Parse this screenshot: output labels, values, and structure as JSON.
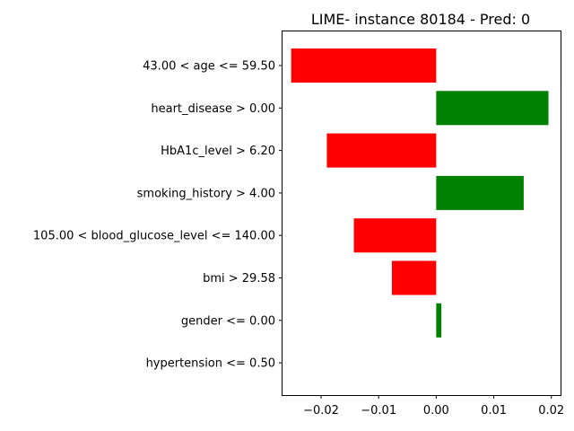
{
  "chart_data": {
    "type": "bar",
    "orientation": "horizontal",
    "title": "LIME- instance 80184 - Pred: 0",
    "xlabel": "",
    "ylabel": "",
    "xlim": [
      -0.0267,
      0.0216
    ],
    "xticks": [
      -0.02,
      -0.01,
      0.0,
      0.01,
      0.02
    ],
    "xtick_labels": [
      "−0.02",
      "−0.01",
      "0.00",
      "0.01",
      "0.02"
    ],
    "grid": false,
    "colors": {
      "positive": "#008000",
      "negative": "#ff0000"
    },
    "categories": [
      "43.00 < age <= 59.50",
      "heart_disease > 0.00",
      "HbA1c_level > 6.20",
      "smoking_history > 4.00",
      "105.00 < blood_glucose_level <= 140.00",
      "bmi > 29.58",
      "gender <= 0.00",
      "hypertension <= 0.50"
    ],
    "values": [
      -0.0252,
      0.0195,
      -0.019,
      0.0152,
      -0.0143,
      -0.0077,
      0.0009,
      0.0
    ]
  }
}
